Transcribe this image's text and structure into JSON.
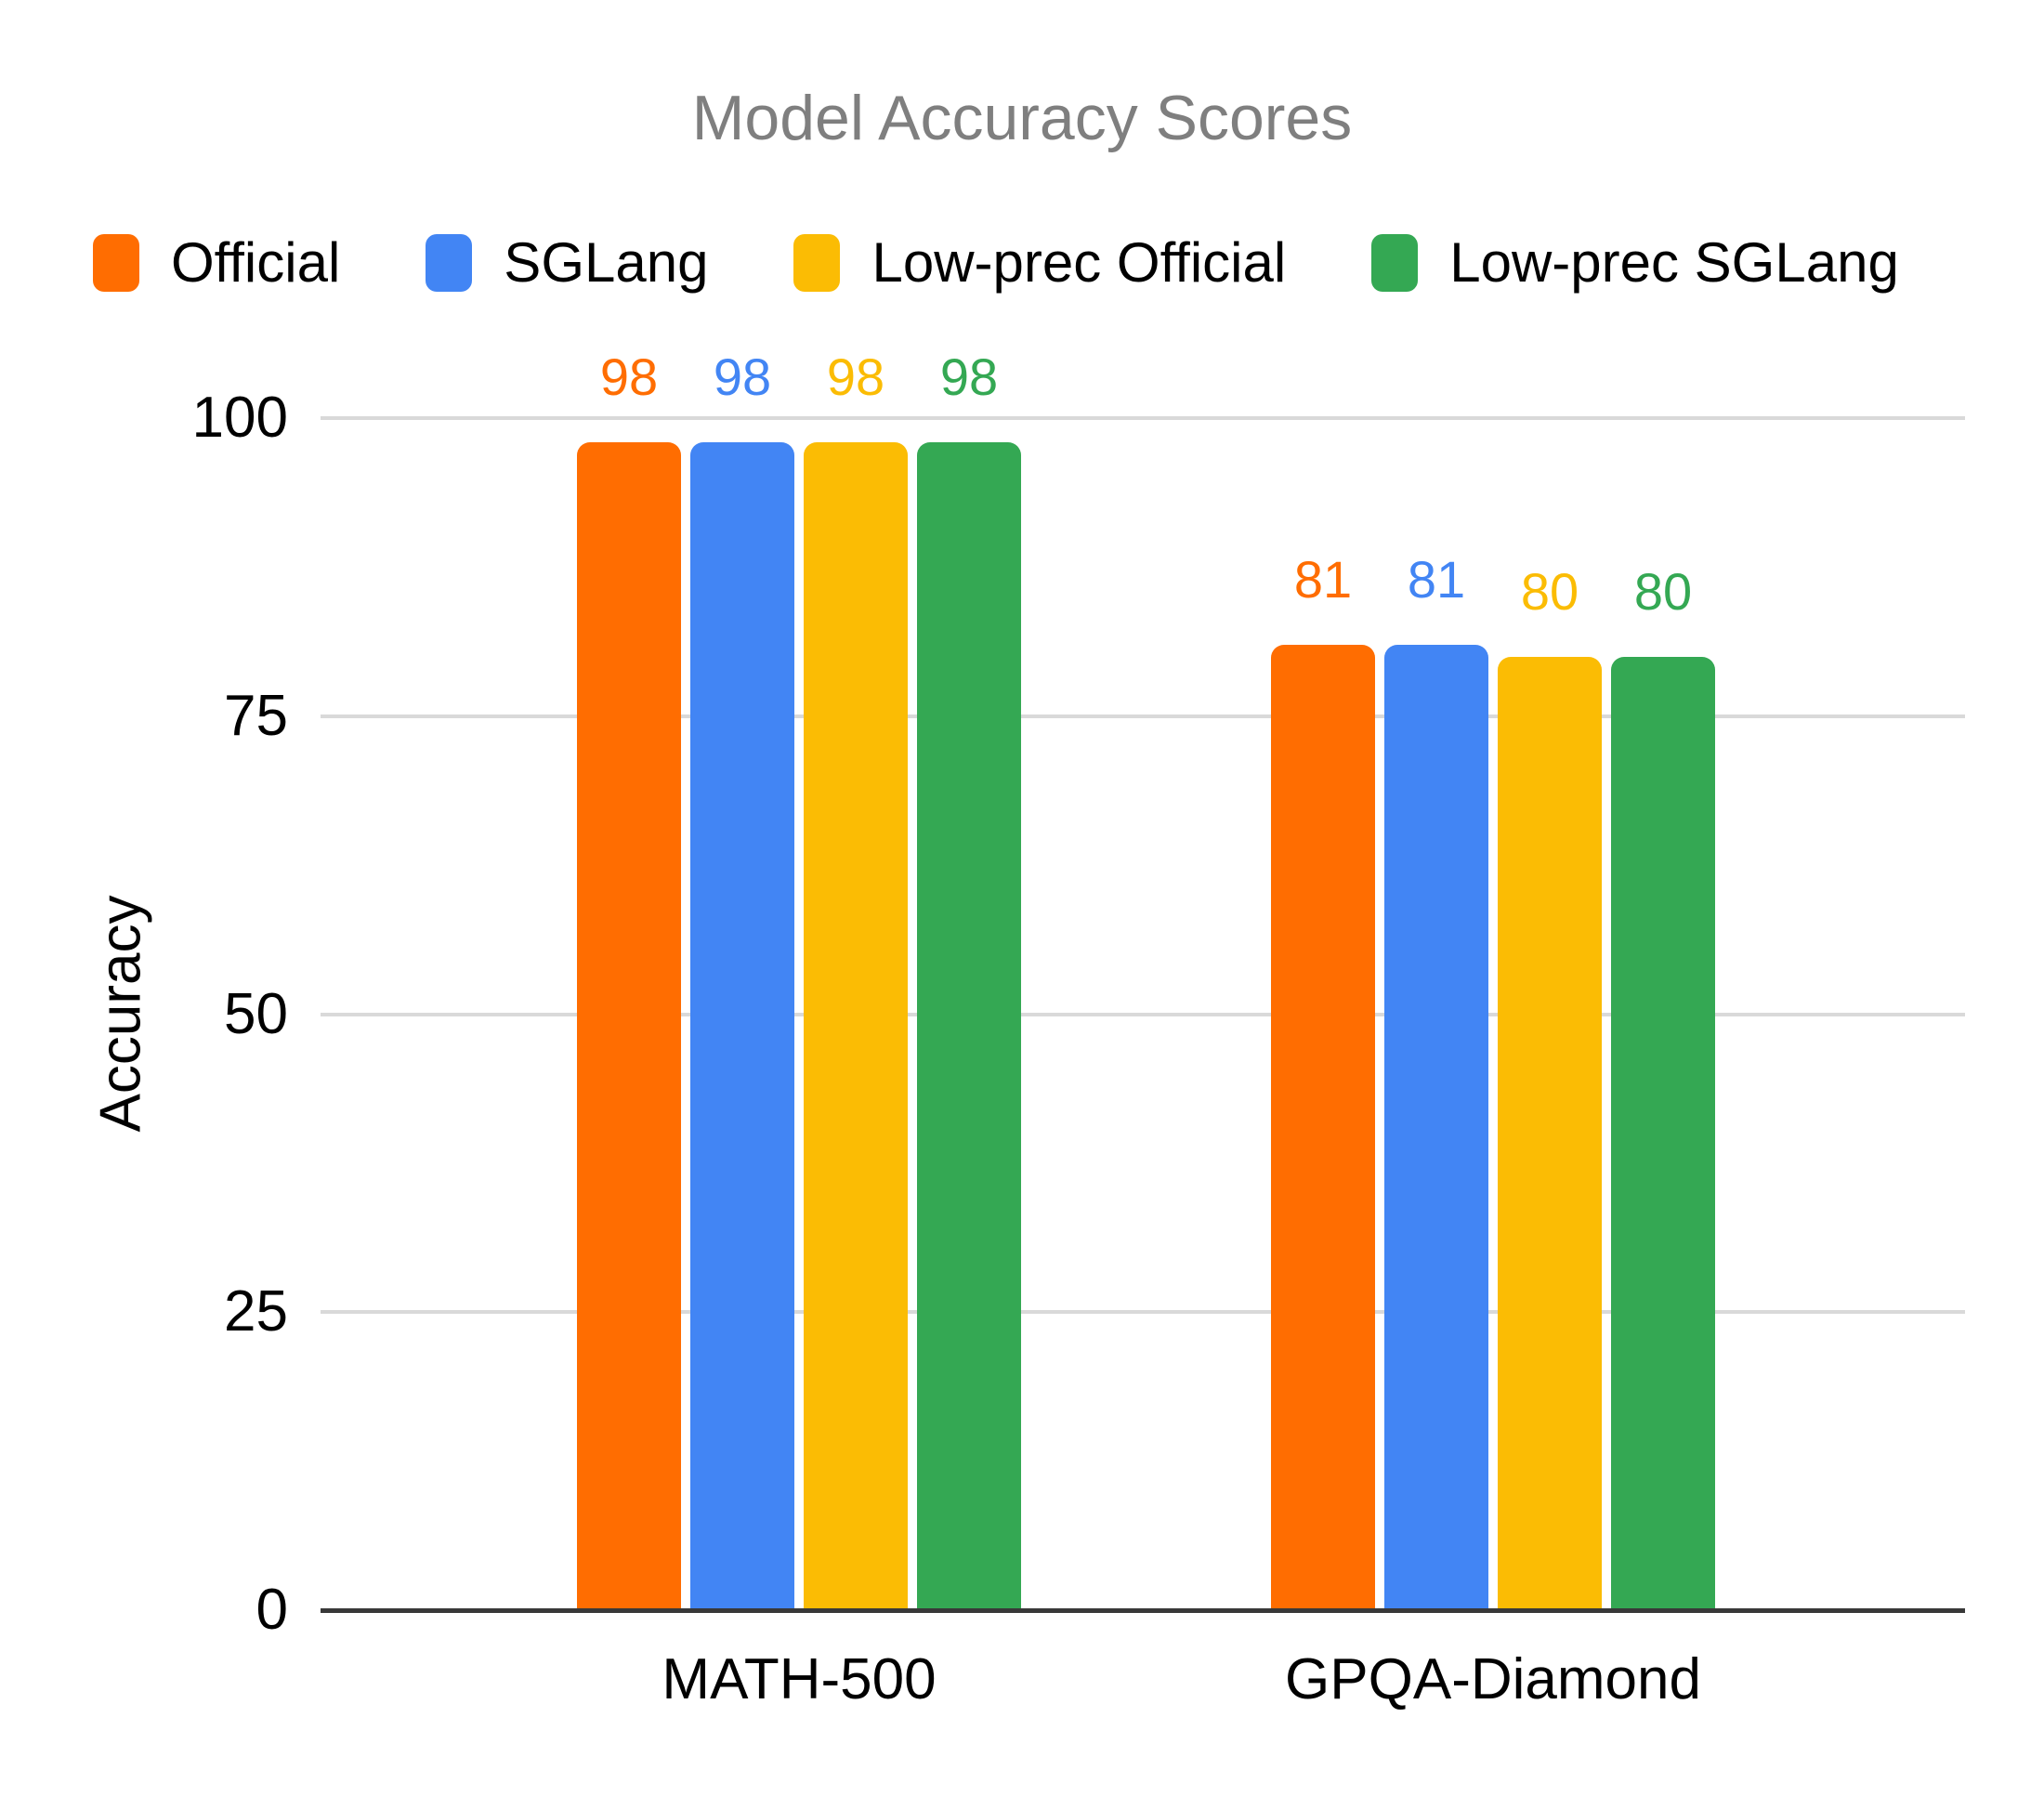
{
  "title": "Model Accuracy Scores",
  "chart_data": {
    "type": "bar",
    "title": "Model Accuracy Scores",
    "categories": [
      "MATH-500",
      "GPQA-Diamond"
    ],
    "series": [
      {
        "name": "Official",
        "color": "#FF6D01",
        "values": [
          98,
          81
        ]
      },
      {
        "name": "SGLang",
        "color": "#4285F4",
        "values": [
          98,
          81
        ]
      },
      {
        "name": "Low-prec Official",
        "color": "#FBBC04",
        "values": [
          98,
          80
        ]
      },
      {
        "name": "Low-prec SGLang",
        "color": "#34A853",
        "values": [
          98,
          80
        ]
      }
    ],
    "xlabel": "",
    "ylabel": "Accuracy",
    "ylim": [
      0,
      100
    ],
    "yticks": [
      0,
      25,
      50,
      75,
      100
    ],
    "grid": true,
    "legend_position": "top",
    "bar_value_labels": true
  },
  "colors": {
    "title_text": "#7F7F7F",
    "axis_text": "#000000",
    "gridline": "#D9D9D9",
    "baseline": "#383838",
    "background": "#FFFFFF"
  }
}
